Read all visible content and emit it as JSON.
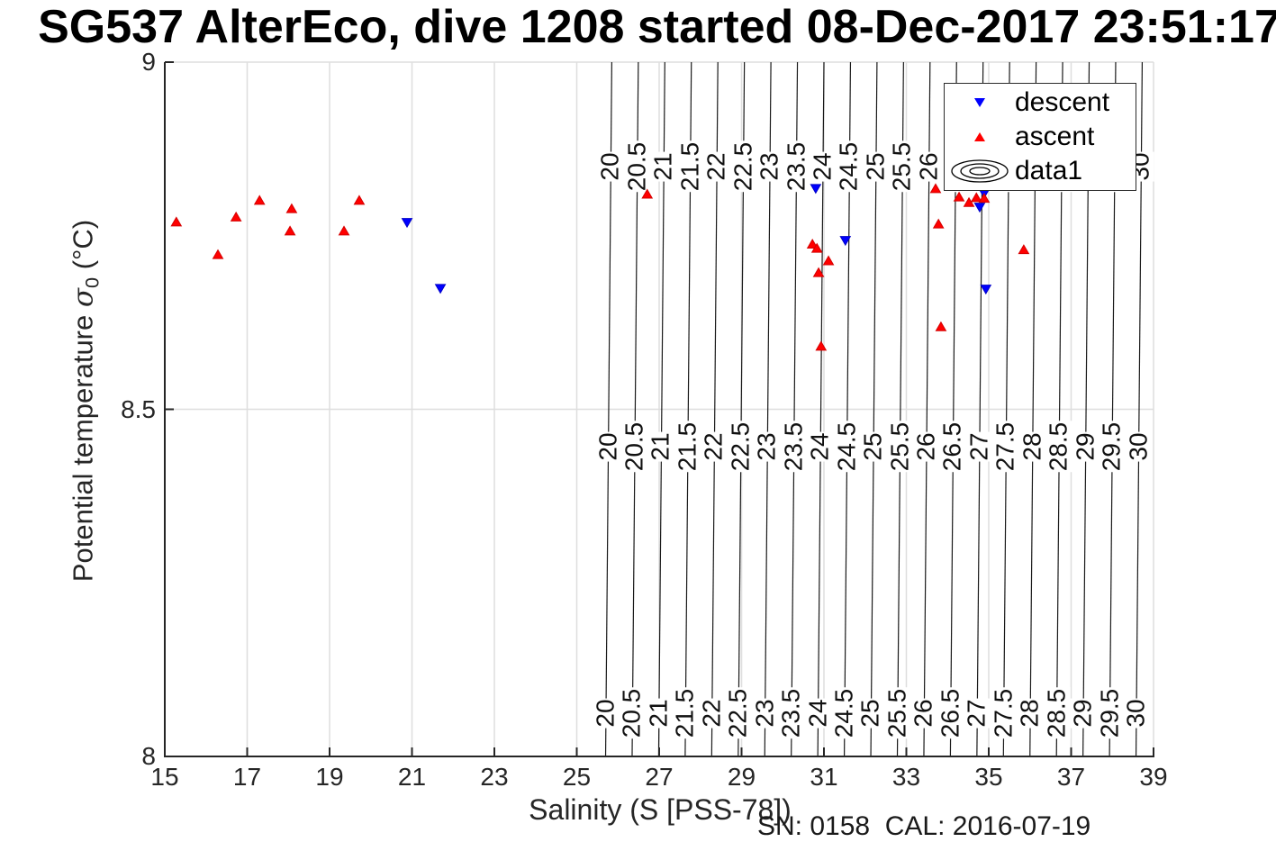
{
  "title": "SG537 AlterEco, dive 1208 started 08-Dec-2017 23:51:17",
  "footer": {
    "sn_cal": "SN: 0158  CAL: 2016-07-19"
  },
  "axes": {
    "xlabel": "Salinity (S [PSS-78])",
    "ylabel_prefix": "Potential temperature ",
    "ylabel_sigma": "σ",
    "ylabel_sub": "0",
    "ylabel_suffix": " (°C)",
    "x_ticks": [
      15,
      17,
      19,
      21,
      23,
      25,
      27,
      29,
      31,
      33,
      35,
      37,
      39
    ],
    "y_ticks": [
      8,
      8.5,
      9
    ],
    "y_tick_labels": [
      "8",
      "8.5",
      "9"
    ]
  },
  "legend": {
    "items": [
      {
        "label": "descent",
        "marker": "triangle-down",
        "color": "#0000ff"
      },
      {
        "label": "ascent",
        "marker": "triangle-up",
        "color": "#ff0000"
      },
      {
        "label": "data1",
        "marker": "contour-rings",
        "color": "#000000"
      }
    ]
  },
  "colors": {
    "descent": "#0000ff",
    "descent_edge": "#0000c8",
    "ascent": "#ff0000",
    "ascent_edge": "#d40000",
    "grid": "#dedede",
    "axis": "#262626",
    "contour_line": "#1a1a1a"
  },
  "chart_data": {
    "type": "scatter",
    "title": "SG537 AlterEco, dive 1208 started 08-Dec-2017 23:51:17",
    "xlabel": "Salinity (S [PSS-78])",
    "ylabel": "Potential temperature sigma0 (degC)",
    "xlim": [
      15,
      39
    ],
    "ylim": [
      8,
      9
    ],
    "grid": true,
    "legend_position": "top-right",
    "series": [
      {
        "name": "descent",
        "marker": "triangle-down",
        "color": "#0000ff",
        "points": [
          [
            20.88,
            8.769
          ],
          [
            21.69,
            8.674
          ],
          [
            30.8,
            8.818
          ],
          [
            31.52,
            8.743
          ],
          [
            34.78,
            8.791
          ],
          [
            34.89,
            8.811
          ],
          [
            34.93,
            8.673
          ]
        ]
      },
      {
        "name": "ascent",
        "marker": "triangle-up",
        "color": "#ff0000",
        "points": [
          [
            15.28,
            8.77
          ],
          [
            16.29,
            8.723
          ],
          [
            16.73,
            8.777
          ],
          [
            17.3,
            8.801
          ],
          [
            18.04,
            8.757
          ],
          [
            18.08,
            8.789
          ],
          [
            19.35,
            8.757
          ],
          [
            19.72,
            8.801
          ],
          [
            26.71,
            8.81
          ],
          [
            30.72,
            8.738
          ],
          [
            30.83,
            8.732
          ],
          [
            31.11,
            8.714
          ],
          [
            30.87,
            8.697
          ],
          [
            30.93,
            8.591
          ],
          [
            33.71,
            8.818
          ],
          [
            33.78,
            8.767
          ],
          [
            33.84,
            8.619
          ],
          [
            34.28,
            8.806
          ],
          [
            34.52,
            8.798
          ],
          [
            34.7,
            8.805
          ],
          [
            34.89,
            8.804
          ],
          [
            35.85,
            8.73
          ]
        ]
      }
    ],
    "contours": {
      "name": "data1",
      "comment": "sigma0 isopycnal lines labeled at three heights, labels rotated 90deg",
      "values": [
        20,
        20.5,
        21,
        21.5,
        22,
        22.5,
        23,
        23.5,
        24,
        24.5,
        25,
        25.5,
        26,
        26.5,
        27,
        27.5,
        28,
        28.5,
        29,
        29.5,
        30
      ],
      "s_at_sigma20_top": 25.85,
      "ds_per_sigma": 1.2875,
      "ds_per_degC": 0.15,
      "label_t_rows": [
        8.85,
        8.446,
        8.062
      ]
    }
  }
}
